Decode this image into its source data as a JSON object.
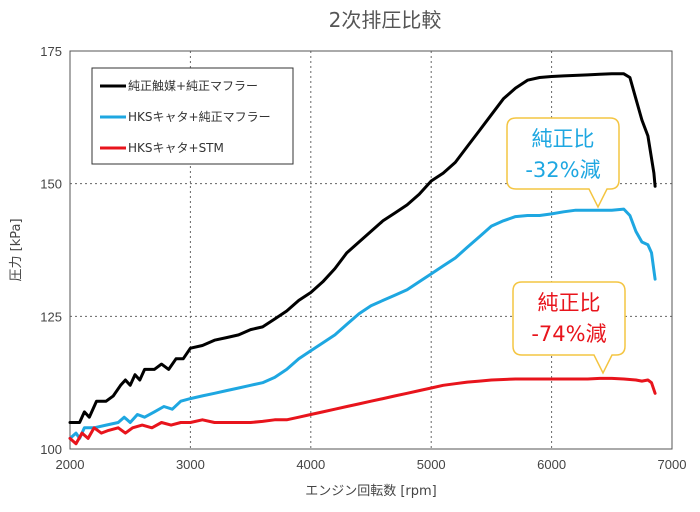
{
  "chart_data": {
    "type": "line",
    "title": "2次排圧比較",
    "xlabel": "エンジン回転数 [rpm]",
    "ylabel": "圧力 [kPa]",
    "xlim": [
      2000,
      7000
    ],
    "ylim": [
      100,
      175
    ],
    "xticks": [
      2000,
      3000,
      4000,
      5000,
      6000,
      7000
    ],
    "yticks": [
      100,
      125,
      150,
      175
    ],
    "grid": "dotted",
    "legend_position": "top-left",
    "series": [
      {
        "name": "純正触媒+純正マフラー",
        "color": "#000000",
        "points": [
          [
            2000,
            105
          ],
          [
            2080,
            105
          ],
          [
            2120,
            107
          ],
          [
            2160,
            106
          ],
          [
            2220,
            109
          ],
          [
            2300,
            109
          ],
          [
            2360,
            110
          ],
          [
            2420,
            112
          ],
          [
            2460,
            113
          ],
          [
            2500,
            112
          ],
          [
            2540,
            114
          ],
          [
            2580,
            113
          ],
          [
            2620,
            115
          ],
          [
            2700,
            115
          ],
          [
            2760,
            116
          ],
          [
            2820,
            115
          ],
          [
            2880,
            117
          ],
          [
            2940,
            117
          ],
          [
            3000,
            119
          ],
          [
            3100,
            119.5
          ],
          [
            3200,
            120.5
          ],
          [
            3300,
            121
          ],
          [
            3400,
            121.5
          ],
          [
            3500,
            122.5
          ],
          [
            3600,
            123
          ],
          [
            3700,
            124.5
          ],
          [
            3800,
            126
          ],
          [
            3900,
            128
          ],
          [
            4000,
            129.5
          ],
          [
            4100,
            131.5
          ],
          [
            4200,
            134
          ],
          [
            4300,
            137
          ],
          [
            4400,
            139
          ],
          [
            4500,
            141
          ],
          [
            4600,
            143
          ],
          [
            4700,
            144.5
          ],
          [
            4800,
            146
          ],
          [
            4900,
            148
          ],
          [
            5000,
            150.5
          ],
          [
            5100,
            152
          ],
          [
            5200,
            154
          ],
          [
            5300,
            157
          ],
          [
            5400,
            160
          ],
          [
            5500,
            163
          ],
          [
            5600,
            166
          ],
          [
            5700,
            168
          ],
          [
            5800,
            169.5
          ],
          [
            5900,
            170
          ],
          [
            6000,
            170.2
          ],
          [
            6100,
            170.3
          ],
          [
            6200,
            170.4
          ],
          [
            6300,
            170.5
          ],
          [
            6400,
            170.6
          ],
          [
            6500,
            170.7
          ],
          [
            6600,
            170.7
          ],
          [
            6650,
            170
          ],
          [
            6700,
            166
          ],
          [
            6750,
            162
          ],
          [
            6800,
            159
          ],
          [
            6850,
            152
          ],
          [
            6860,
            149.5
          ]
        ]
      },
      {
        "name": "HKSキャタ+純正マフラー",
        "color": "#1ea7e1",
        "points": [
          [
            2000,
            102
          ],
          [
            2050,
            103
          ],
          [
            2080,
            102
          ],
          [
            2120,
            104
          ],
          [
            2200,
            104
          ],
          [
            2300,
            104.5
          ],
          [
            2400,
            105
          ],
          [
            2450,
            106
          ],
          [
            2500,
            105
          ],
          [
            2560,
            106.5
          ],
          [
            2620,
            106
          ],
          [
            2700,
            107
          ],
          [
            2780,
            108
          ],
          [
            2850,
            107.5
          ],
          [
            2920,
            109
          ],
          [
            3000,
            109.5
          ],
          [
            3100,
            110
          ],
          [
            3200,
            110.5
          ],
          [
            3300,
            111
          ],
          [
            3400,
            111.5
          ],
          [
            3500,
            112
          ],
          [
            3600,
            112.5
          ],
          [
            3700,
            113.5
          ],
          [
            3800,
            115
          ],
          [
            3900,
            117
          ],
          [
            4000,
            118.5
          ],
          [
            4100,
            120
          ],
          [
            4200,
            121.5
          ],
          [
            4300,
            123.5
          ],
          [
            4400,
            125.5
          ],
          [
            4500,
            127
          ],
          [
            4600,
            128
          ],
          [
            4700,
            129
          ],
          [
            4800,
            130
          ],
          [
            4900,
            131.5
          ],
          [
            5000,
            133
          ],
          [
            5100,
            134.5
          ],
          [
            5200,
            136
          ],
          [
            5300,
            138
          ],
          [
            5400,
            140
          ],
          [
            5500,
            142
          ],
          [
            5600,
            143
          ],
          [
            5700,
            143.8
          ],
          [
            5800,
            144
          ],
          [
            5900,
            144
          ],
          [
            6000,
            144.3
          ],
          [
            6100,
            144.7
          ],
          [
            6200,
            145
          ],
          [
            6300,
            145
          ],
          [
            6400,
            145
          ],
          [
            6500,
            145
          ],
          [
            6600,
            145.2
          ],
          [
            6650,
            144
          ],
          [
            6700,
            141
          ],
          [
            6750,
            139
          ],
          [
            6800,
            138.5
          ],
          [
            6830,
            137
          ],
          [
            6860,
            132
          ]
        ]
      },
      {
        "name": "HKSキャタ+STM",
        "color": "#e8141c",
        "points": [
          [
            2000,
            102
          ],
          [
            2050,
            101
          ],
          [
            2100,
            103
          ],
          [
            2150,
            102
          ],
          [
            2200,
            104
          ],
          [
            2260,
            103
          ],
          [
            2320,
            103.5
          ],
          [
            2400,
            104
          ],
          [
            2460,
            103
          ],
          [
            2520,
            104
          ],
          [
            2600,
            104.5
          ],
          [
            2680,
            104
          ],
          [
            2760,
            105
          ],
          [
            2840,
            104.5
          ],
          [
            2920,
            105
          ],
          [
            3000,
            105
          ],
          [
            3100,
            105.5
          ],
          [
            3200,
            105
          ],
          [
            3300,
            105
          ],
          [
            3400,
            105
          ],
          [
            3500,
            105
          ],
          [
            3600,
            105.2
          ],
          [
            3700,
            105.5
          ],
          [
            3800,
            105.5
          ],
          [
            3900,
            106
          ],
          [
            4000,
            106.5
          ],
          [
            4100,
            107
          ],
          [
            4200,
            107.5
          ],
          [
            4300,
            108
          ],
          [
            4400,
            108.5
          ],
          [
            4500,
            109
          ],
          [
            4600,
            109.5
          ],
          [
            4700,
            110
          ],
          [
            4800,
            110.5
          ],
          [
            4900,
            111
          ],
          [
            5000,
            111.5
          ],
          [
            5100,
            112
          ],
          [
            5200,
            112.3
          ],
          [
            5300,
            112.6
          ],
          [
            5400,
            112.8
          ],
          [
            5500,
            113
          ],
          [
            5600,
            113.1
          ],
          [
            5700,
            113.2
          ],
          [
            5800,
            113.2
          ],
          [
            5900,
            113.2
          ],
          [
            6000,
            113.2
          ],
          [
            6100,
            113.2
          ],
          [
            6200,
            113.2
          ],
          [
            6300,
            113.2
          ],
          [
            6400,
            113.3
          ],
          [
            6500,
            113.3
          ],
          [
            6600,
            113.2
          ],
          [
            6700,
            113
          ],
          [
            6750,
            112.8
          ],
          [
            6800,
            113
          ],
          [
            6830,
            112.5
          ],
          [
            6860,
            110.5
          ]
        ]
      }
    ],
    "annotations": [
      {
        "line1": "純正比",
        "line2": "-32%減",
        "color": "#1ea7e1"
      },
      {
        "line1": "純正比",
        "line2": "-74%減",
        "color": "#e8141c"
      }
    ]
  }
}
